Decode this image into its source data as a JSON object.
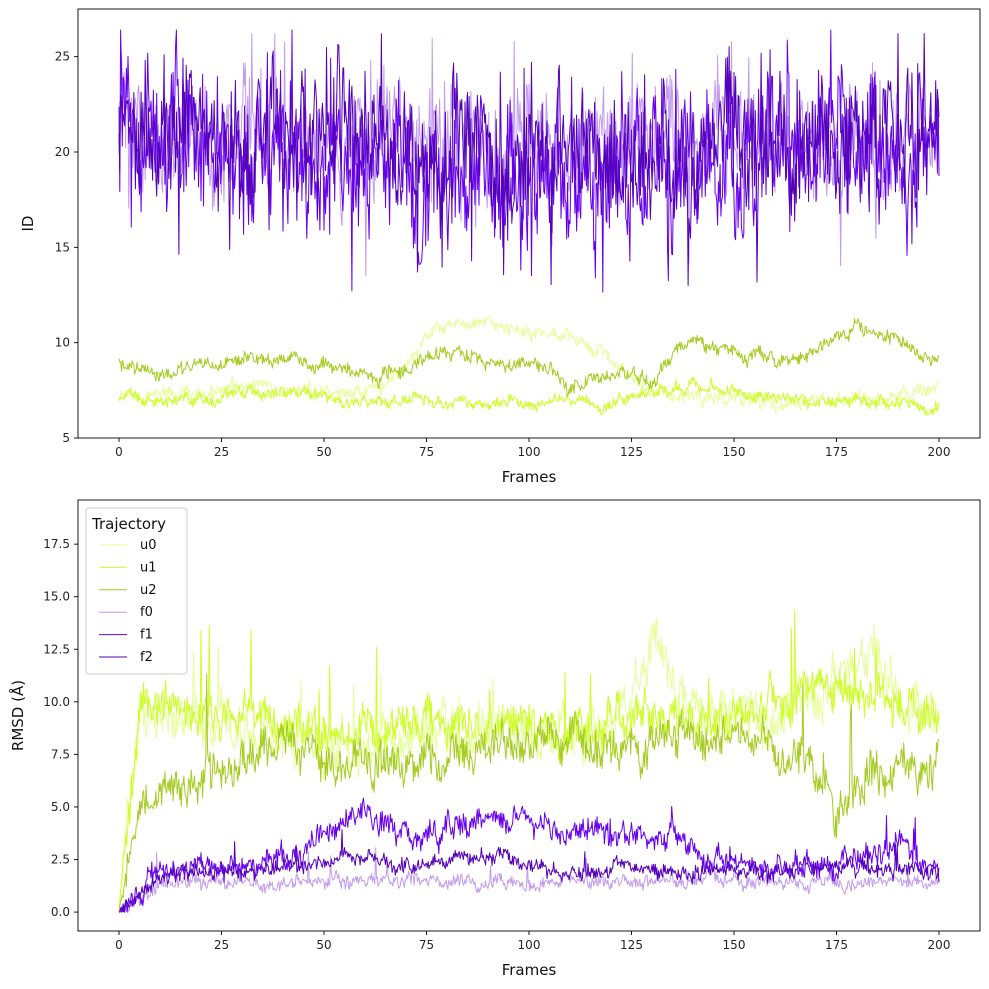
{
  "chart_data": [
    {
      "type": "line",
      "title": "",
      "xlabel": "Frames",
      "ylabel": "ID",
      "xlim": [
        -10,
        210
      ],
      "ylim": [
        5,
        27.5
      ],
      "xticks": [
        0,
        25,
        50,
        75,
        100,
        125,
        150,
        175,
        200
      ],
      "xtick_labels": [
        "0",
        "25",
        "50",
        "75",
        "100",
        "125",
        "150",
        "175",
        "200"
      ],
      "yticks": [
        5,
        10,
        15,
        20,
        25
      ],
      "ytick_labels": [
        "5",
        "10",
        "15",
        "20",
        "25"
      ],
      "series": [
        {
          "name": "u0",
          "color": "#e6ff99",
          "x": [
            0,
            10,
            20,
            30,
            40,
            50,
            60,
            70,
            75,
            80,
            90,
            100,
            110,
            120,
            130,
            140,
            150,
            160,
            170,
            180,
            190,
            200
          ],
          "values": [
            7.0,
            7.2,
            7.4,
            7.8,
            7.6,
            7.4,
            7.3,
            8.6,
            10.4,
            10.8,
            11.0,
            10.6,
            10.2,
            9.2,
            7.4,
            7.2,
            7.0,
            6.9,
            7.1,
            7.0,
            7.2,
            7.5
          ]
        },
        {
          "name": "u1",
          "color": "#ccff22",
          "x": [
            0,
            10,
            20,
            30,
            40,
            50,
            60,
            70,
            80,
            90,
            100,
            110,
            120,
            130,
            140,
            150,
            160,
            170,
            180,
            190,
            200
          ],
          "values": [
            7.2,
            7.0,
            6.9,
            7.3,
            7.5,
            7.2,
            6.8,
            7.0,
            6.9,
            6.8,
            7.0,
            6.9,
            6.7,
            7.6,
            7.8,
            7.4,
            7.2,
            7.0,
            7.1,
            6.8,
            6.6
          ]
        },
        {
          "name": "u2",
          "color": "#a6cc22",
          "x": [
            0,
            10,
            20,
            30,
            40,
            50,
            60,
            70,
            80,
            90,
            100,
            105,
            110,
            120,
            130,
            140,
            150,
            160,
            170,
            180,
            190,
            200
          ],
          "values": [
            8.8,
            8.2,
            8.8,
            9.0,
            9.2,
            8.8,
            8.2,
            8.8,
            9.6,
            9.0,
            8.8,
            8.6,
            7.8,
            8.4,
            8.0,
            10.2,
            9.6,
            9.0,
            9.6,
            10.8,
            10.0,
            9.0
          ]
        },
        {
          "name": "f0",
          "color": "#c39cf0",
          "x": [
            0,
            10,
            20,
            30,
            40,
            50,
            60,
            70,
            80,
            90,
            100,
            110,
            120,
            130,
            140,
            150,
            160,
            170,
            180,
            190,
            200
          ],
          "values": [
            21.5,
            21.0,
            20.5,
            21.5,
            21.0,
            19.5,
            20.0,
            21.0,
            20.5,
            20.0,
            21.0,
            20.0,
            20.5,
            20.0,
            20.5,
            21.0,
            20.5,
            20.0,
            21.0,
            20.5,
            21.0
          ]
        },
        {
          "name": "f1",
          "color": "#6600ee",
          "x": [
            0,
            10,
            20,
            30,
            40,
            50,
            60,
            70,
            80,
            90,
            100,
            110,
            120,
            130,
            140,
            150,
            160,
            170,
            180,
            190,
            200
          ],
          "values": [
            21.0,
            20.5,
            20.5,
            20.0,
            20.5,
            19.5,
            19.0,
            19.5,
            19.0,
            19.5,
            19.0,
            18.5,
            19.0,
            19.5,
            19.0,
            19.5,
            20.0,
            20.5,
            20.5,
            20.0,
            21.0
          ]
        },
        {
          "name": "f2",
          "color": "#5500bb",
          "x": [
            0,
            10,
            20,
            30,
            40,
            50,
            60,
            70,
            80,
            90,
            100,
            110,
            120,
            130,
            140,
            150,
            160,
            170,
            180,
            190,
            200
          ],
          "values": [
            20.5,
            21.0,
            20.5,
            21.0,
            20.5,
            20.0,
            20.5,
            20.0,
            20.5,
            20.0,
            20.5,
            20.0,
            20.5,
            20.0,
            20.5,
            21.0,
            20.5,
            20.0,
            20.5,
            21.0,
            21.5
          ]
        }
      ]
    },
    {
      "type": "line",
      "title": "",
      "xlabel": "Frames",
      "ylabel": "RMSD (Å)",
      "xlim": [
        -10,
        210
      ],
      "ylim": [
        -0.9,
        19.6
      ],
      "xticks": [
        0,
        25,
        50,
        75,
        100,
        125,
        150,
        175,
        200
      ],
      "xtick_labels": [
        "0",
        "25",
        "50",
        "75",
        "100",
        "125",
        "150",
        "175",
        "200"
      ],
      "yticks": [
        0,
        2.5,
        5,
        7.5,
        10,
        12.5,
        15,
        17.5
      ],
      "ytick_labels": [
        "0.0",
        "2.5",
        "5.0",
        "7.5",
        "10.0",
        "12.5",
        "15.0",
        "17.5"
      ],
      "legend": {
        "title": "Trajectory",
        "position": "top-left",
        "entries": [
          "u0",
          "u1",
          "u2",
          "f0",
          "f1",
          "f2"
        ]
      },
      "series": [
        {
          "name": "u0",
          "color": "#e6ff99",
          "x": [
            0,
            5,
            10,
            20,
            30,
            40,
            50,
            60,
            70,
            80,
            90,
            100,
            110,
            120,
            125,
            130,
            135,
            140,
            150,
            160,
            170,
            180,
            185,
            190,
            200
          ],
          "values": [
            0.0,
            9.5,
            9.2,
            9.0,
            8.8,
            8.5,
            8.2,
            8.0,
            8.2,
            8.5,
            8.8,
            8.6,
            8.4,
            8.8,
            10.5,
            13.0,
            11.0,
            9.5,
            9.0,
            9.2,
            9.8,
            11.5,
            12.0,
            10.0,
            9.8
          ]
        },
        {
          "name": "u1",
          "color": "#ccff22",
          "x": [
            0,
            5,
            10,
            20,
            30,
            40,
            50,
            60,
            70,
            80,
            90,
            100,
            110,
            120,
            130,
            140,
            150,
            160,
            170,
            180,
            190,
            200
          ],
          "values": [
            0.0,
            10.0,
            9.8,
            9.5,
            9.2,
            9.0,
            8.8,
            8.6,
            8.8,
            9.2,
            9.0,
            8.8,
            8.6,
            9.0,
            9.4,
            9.2,
            9.6,
            9.8,
            10.0,
            10.2,
            9.6,
            9.4
          ]
        },
        {
          "name": "u2",
          "color": "#a6cc22",
          "x": [
            0,
            5,
            10,
            20,
            30,
            40,
            50,
            60,
            70,
            80,
            90,
            100,
            110,
            120,
            130,
            140,
            150,
            160,
            170,
            175,
            180,
            190,
            200
          ],
          "values": [
            0.0,
            5.2,
            5.6,
            6.5,
            7.2,
            7.8,
            7.2,
            6.8,
            7.0,
            7.5,
            7.8,
            8.2,
            8.0,
            7.6,
            7.8,
            8.4,
            8.6,
            8.0,
            6.8,
            5.0,
            6.2,
            6.5,
            7.0
          ]
        },
        {
          "name": "f0",
          "color": "#c39cf0",
          "x": [
            0,
            10,
            20,
            30,
            40,
            50,
            60,
            70,
            80,
            90,
            100,
            110,
            120,
            130,
            140,
            150,
            160,
            170,
            180,
            190,
            200
          ],
          "values": [
            0.0,
            1.3,
            1.4,
            1.5,
            1.4,
            1.5,
            1.6,
            1.4,
            1.5,
            1.4,
            1.4,
            1.5,
            1.4,
            1.5,
            1.6,
            1.5,
            1.4,
            1.5,
            1.4,
            1.5,
            1.5
          ]
        },
        {
          "name": "f1",
          "color": "#6600ee",
          "x": [
            0,
            10,
            20,
            30,
            40,
            50,
            55,
            60,
            65,
            70,
            80,
            90,
            100,
            110,
            120,
            130,
            135,
            140,
            150,
            160,
            170,
            180,
            190,
            200
          ],
          "values": [
            0.0,
            2.0,
            2.2,
            2.2,
            2.4,
            3.8,
            4.2,
            4.8,
            4.2,
            3.4,
            4.0,
            4.6,
            4.2,
            4.0,
            3.6,
            3.4,
            4.0,
            2.6,
            2.2,
            2.1,
            2.2,
            2.3,
            3.5,
            2.0
          ]
        },
        {
          "name": "f2",
          "color": "#5500bb",
          "x": [
            0,
            10,
            20,
            30,
            40,
            50,
            60,
            70,
            80,
            90,
            100,
            110,
            120,
            130,
            140,
            150,
            160,
            170,
            180,
            190,
            200
          ],
          "values": [
            0.0,
            1.8,
            2.0,
            2.0,
            2.1,
            2.4,
            2.8,
            2.2,
            2.4,
            2.6,
            2.2,
            2.0,
            2.2,
            2.0,
            1.9,
            2.0,
            1.9,
            2.0,
            2.1,
            2.0,
            1.8
          ]
        }
      ]
    }
  ]
}
